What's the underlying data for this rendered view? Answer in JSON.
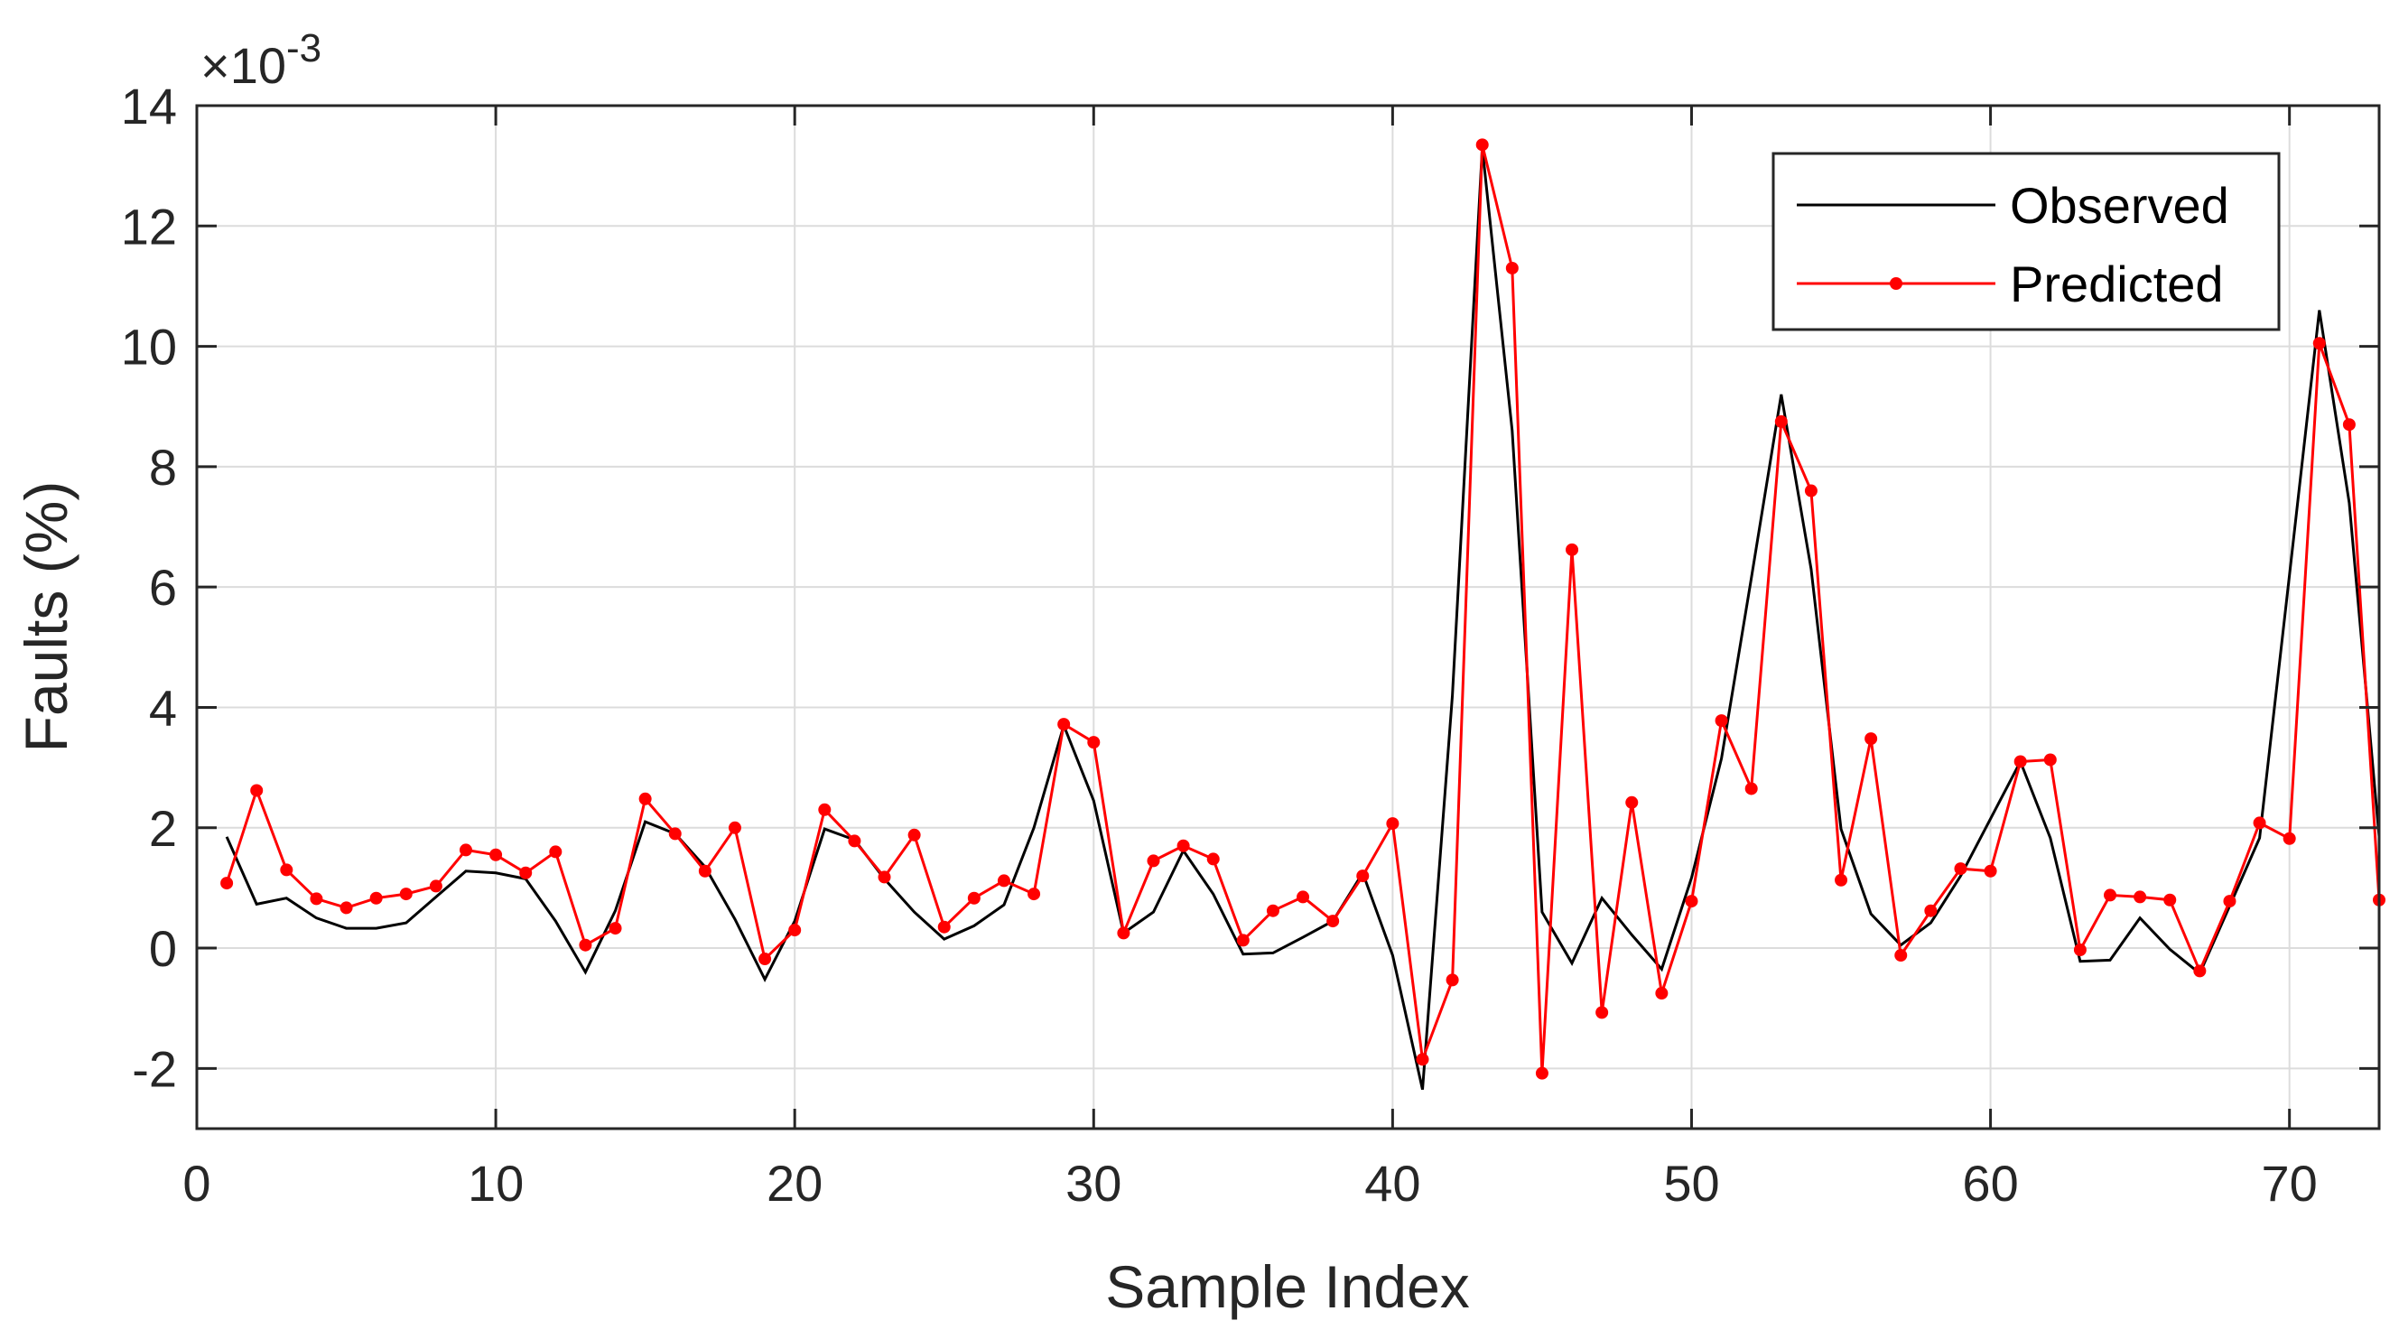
{
  "chart_data": {
    "type": "line",
    "xlabel": "Sample Index",
    "ylabel": "Faults (%)",
    "y_exponent_label": "×10",
    "y_exponent_power": "-3",
    "xlim": [
      0,
      73
    ],
    "ylim": [
      -3,
      14
    ],
    "x_ticks": [
      0,
      10,
      20,
      30,
      40,
      50,
      60,
      70
    ],
    "y_ticks": [
      -2,
      0,
      2,
      4,
      6,
      8,
      10,
      12,
      14
    ],
    "grid": true,
    "legend_position": "top-right",
    "x": [
      1,
      2,
      3,
      4,
      5,
      6,
      7,
      8,
      9,
      10,
      11,
      12,
      13,
      14,
      15,
      16,
      17,
      18,
      19,
      20,
      21,
      22,
      23,
      24,
      25,
      26,
      27,
      28,
      29,
      30,
      31,
      32,
      33,
      34,
      35,
      36,
      37,
      38,
      39,
      40,
      41,
      42,
      43,
      44,
      45,
      46,
      47,
      48,
      49,
      50,
      51,
      52,
      53,
      54,
      55,
      56,
      57,
      58,
      59,
      60,
      61,
      62,
      63,
      64,
      65,
      66,
      67,
      68,
      69,
      70,
      71,
      72,
      73
    ],
    "series": [
      {
        "name": "Observed",
        "color": "#000000",
        "marker": false,
        "values": [
          1.85,
          0.73,
          0.83,
          0.5,
          0.33,
          0.33,
          0.42,
          0.85,
          1.28,
          1.25,
          1.15,
          0.45,
          -0.4,
          0.62,
          2.1,
          1.9,
          1.35,
          0.48,
          -0.52,
          0.45,
          1.98,
          1.8,
          1.15,
          0.6,
          0.15,
          0.37,
          0.72,
          2.0,
          3.7,
          2.45,
          0.25,
          0.6,
          1.62,
          0.9,
          -0.1,
          -0.08,
          0.18,
          0.45,
          1.25,
          -0.12,
          -2.35,
          4.2,
          13.3,
          8.6,
          0.6,
          -0.25,
          0.83,
          0.22,
          -0.35,
          1.17,
          3.15,
          6.15,
          9.2,
          6.3,
          1.98,
          0.57,
          0.05,
          0.42,
          1.2,
          2.15,
          3.1,
          1.83,
          -0.22,
          -0.2,
          0.5,
          -0.02,
          -0.42,
          0.7,
          1.83,
          6.2,
          10.6,
          7.4,
          1.85
        ]
      },
      {
        "name": "Predicted",
        "color": "#ff0000",
        "marker": true,
        "values": [
          1.08,
          2.62,
          1.3,
          0.82,
          0.67,
          0.83,
          0.9,
          1.03,
          1.63,
          1.55,
          1.25,
          1.6,
          0.05,
          0.33,
          2.48,
          1.9,
          1.28,
          2.0,
          -0.18,
          0.3,
          2.3,
          1.78,
          1.18,
          1.88,
          0.35,
          0.83,
          1.12,
          0.9,
          3.72,
          3.42,
          0.25,
          1.45,
          1.7,
          1.48,
          0.13,
          0.62,
          0.85,
          0.45,
          1.2,
          2.07,
          -1.85,
          -0.53,
          13.35,
          11.3,
          -2.08,
          6.62,
          -1.07,
          2.42,
          -0.75,
          0.78,
          3.78,
          2.65,
          8.75,
          7.6,
          1.13,
          3.48,
          -0.12,
          0.62,
          1.32,
          1.28,
          3.1,
          3.13,
          -0.03,
          0.88,
          0.85,
          0.8,
          -0.38,
          0.78,
          2.08,
          1.82,
          10.05,
          8.7,
          0.8
        ]
      }
    ]
  }
}
